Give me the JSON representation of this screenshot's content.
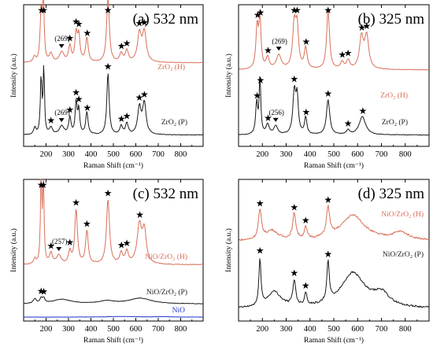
{
  "colors": {
    "red": "#d9705a",
    "black": "#1a1a1a",
    "blue": "#2233cc"
  },
  "chart_data": [
    {
      "type": "line",
      "title": "(a) 532 nm",
      "xlabel": "Raman Shift (cm⁻¹)",
      "ylabel": "Intensity (a.u.)",
      "xlim": [
        100,
        900
      ],
      "xticks": [
        "200",
        "300",
        "400",
        "500",
        "600",
        "700",
        "800"
      ],
      "series": [
        {
          "name": "ZrO₂ (H)",
          "color": "#d9705a",
          "offset": 0.55,
          "scale": 0.5,
          "baseline": 0.08,
          "peaks": [
            [
              148,
              0.08,
              6
            ],
            [
              178,
              0.72,
              5
            ],
            [
              188,
              0.9,
              4
            ],
            [
              222,
              0.12,
              8
            ],
            [
              270,
              0.14,
              12
            ],
            [
              306,
              0.22,
              7
            ],
            [
              334,
              0.4,
              6
            ],
            [
              346,
              0.36,
              6
            ],
            [
              382,
              0.34,
              7
            ],
            [
              476,
              0.92,
              7
            ],
            [
              535,
              0.12,
              8
            ],
            [
              560,
              0.16,
              8
            ],
            [
              616,
              0.4,
              10
            ],
            [
              638,
              0.42,
              10
            ]
          ],
          "stars": [
            [
              180,
              "★"
            ],
            [
              190,
              "★"
            ],
            [
              306,
              "★"
            ],
            [
              334,
              "★"
            ],
            [
              346,
              "★"
            ],
            [
              384,
              "★"
            ],
            [
              476,
              "★"
            ],
            [
              536,
              "★"
            ],
            [
              560,
              "★"
            ],
            [
              616,
              "★"
            ],
            [
              638,
              "★"
            ]
          ]
        },
        {
          "name": "ZrO₂ (P)",
          "color": "#1a1a1a",
          "offset": 0.05,
          "scale": 0.5,
          "baseline": 0.06,
          "peaks": [
            [
              150,
              0.1,
              6
            ],
            [
              178,
              0.8,
              4
            ],
            [
              190,
              0.95,
              3.5
            ],
            [
              222,
              0.1,
              8
            ],
            [
              270,
              0.12,
              12
            ],
            [
              306,
              0.24,
              6
            ],
            [
              334,
              0.45,
              5
            ],
            [
              346,
              0.34,
              5
            ],
            [
              382,
              0.32,
              6
            ],
            [
              476,
              0.88,
              6
            ],
            [
              535,
              0.12,
              7
            ],
            [
              560,
              0.16,
              7
            ],
            [
              616,
              0.38,
              9
            ],
            [
              638,
              0.44,
              9
            ]
          ],
          "stars": [
            [
              222,
              "★"
            ],
            [
              306,
              "★"
            ],
            [
              334,
              "★"
            ],
            [
              346,
              "★"
            ],
            [
              384,
              "★"
            ],
            [
              476,
              "★"
            ],
            [
              536,
              "★"
            ],
            [
              560,
              "★"
            ],
            [
              616,
              "★"
            ],
            [
              638,
              "★"
            ]
          ]
        }
      ],
      "annotations": [
        {
          "text": "(269)",
          "x": 269
        },
        {
          "text": "(269)",
          "x": 269
        }
      ]
    },
    {
      "type": "line",
      "title": "(b) 325 nm",
      "xlabel": "Raman Shift (cm⁻¹)",
      "ylabel": "Intensity (a.u.)",
      "xlim": [
        100,
        900
      ],
      "xticks": [
        "200",
        "300",
        "400",
        "500",
        "600",
        "700",
        "800"
      ],
      "series": [
        {
          "name": "ZrO₂ (H)",
          "color": "#d9705a",
          "offset": 0.5,
          "scale": 0.5,
          "baseline": 0.08,
          "peaks": [
            [
              178,
              0.6,
              6
            ],
            [
              190,
              0.72,
              5
            ],
            [
              222,
              0.16,
              8
            ],
            [
              269,
              0.2,
              12
            ],
            [
              334,
              0.62,
              8
            ],
            [
              346,
              0.55,
              7
            ],
            [
              382,
              0.3,
              7
            ],
            [
              476,
              0.85,
              7
            ],
            [
              535,
              0.1,
              8
            ],
            [
              560,
              0.12,
              8
            ],
            [
              616,
              0.44,
              10
            ],
            [
              638,
              0.46,
              10
            ]
          ],
          "stars": [
            [
              180,
              "★"
            ],
            [
              192,
              "★"
            ],
            [
              224,
              "★"
            ],
            [
              334,
              "★"
            ],
            [
              346,
              "★"
            ],
            [
              384,
              "★"
            ],
            [
              476,
              "★"
            ],
            [
              536,
              "★"
            ],
            [
              560,
              "★"
            ],
            [
              618,
              "★"
            ],
            [
              638,
              "★"
            ]
          ]
        },
        {
          "name": "ZrO₂ (P)",
          "color": "#1a1a1a",
          "offset": 0.05,
          "scale": 0.5,
          "baseline": 0.06,
          "peaks": [
            [
              176,
              0.45,
              5
            ],
            [
              190,
              0.8,
              4
            ],
            [
              222,
              0.14,
              8
            ],
            [
              256,
              0.12,
              10
            ],
            [
              334,
              0.6,
              7
            ],
            [
              346,
              0.5,
              6
            ],
            [
              382,
              0.24,
              6
            ],
            [
              476,
              0.5,
              8
            ],
            [
              560,
              0.06,
              8
            ],
            [
              620,
              0.26,
              16
            ]
          ],
          "stars": [
            [
              178,
              "★"
            ],
            [
              192,
              "★"
            ],
            [
              224,
              "★"
            ],
            [
              334,
              "★"
            ],
            [
              384,
              "★"
            ],
            [
              476,
              "★"
            ],
            [
              560,
              "★"
            ],
            [
              622,
              "★"
            ]
          ]
        }
      ],
      "annotations": [
        {
          "text": "(269)",
          "x": 269
        },
        {
          "text": "(256)",
          "x": 256
        }
      ]
    },
    {
      "type": "line",
      "title": "(c) 532 nm",
      "xlabel": "Raman Shift (cm⁻¹)",
      "ylabel": "Intensity (a.u.)",
      "xlim": [
        100,
        900
      ],
      "xticks": [
        "200",
        "300",
        "400",
        "500",
        "600",
        "700",
        "800"
      ],
      "series": [
        {
          "name": "NiO/ZrO₂ (H)",
          "color": "#d9705a",
          "offset": 0.36,
          "scale": 0.62,
          "baseline": 0.06,
          "peaks": [
            [
              150,
              0.06,
              6
            ],
            [
              178,
              0.95,
              3.5
            ],
            [
              188,
              0.95,
              3.5
            ],
            [
              222,
              0.12,
              8
            ],
            [
              257,
              0.1,
              12
            ],
            [
              306,
              0.14,
              7
            ],
            [
              334,
              0.62,
              7
            ],
            [
              382,
              0.38,
              7
            ],
            [
              476,
              0.74,
              8
            ],
            [
              535,
              0.12,
              8
            ],
            [
              560,
              0.14,
              8
            ],
            [
              616,
              0.44,
              12
            ],
            [
              638,
              0.36,
              10
            ]
          ],
          "stars": [
            [
              178,
              "★"
            ],
            [
              188,
              "★"
            ],
            [
              222,
              "★"
            ],
            [
              306,
              "★"
            ],
            [
              334,
              "★"
            ],
            [
              382,
              "★"
            ],
            [
              476,
              "★"
            ],
            [
              536,
              "★"
            ],
            [
              560,
              "★"
            ],
            [
              618,
              "★"
            ]
          ]
        },
        {
          "name": "NiO/ZrO₂ (P)",
          "color": "#1a1a1a",
          "offset": 0.1,
          "scale": 0.4,
          "baseline": 0.05,
          "peaks": [
            [
              150,
              0.08,
              8
            ],
            [
              178,
              0.09,
              6
            ],
            [
              190,
              0.08,
              6
            ],
            [
              270,
              0.08,
              50
            ],
            [
              470,
              0.05,
              40
            ],
            [
              620,
              0.1,
              60
            ]
          ],
          "stars": [
            [
              178,
              "★"
            ],
            [
              190,
              "★"
            ]
          ]
        },
        {
          "name": "NiO",
          "color": "#2233cc",
          "offset": 0.02,
          "scale": 0.15,
          "baseline": 0.05,
          "peaks": [
            [
              540,
              0.03,
              80
            ],
            [
              720,
              0.02,
              40
            ]
          ],
          "stars": []
        }
      ],
      "annotations": [
        {
          "text": "(257)",
          "x": 257
        }
      ]
    },
    {
      "type": "line",
      "title": "(d) 325 nm",
      "xlabel": "Raman Shift (cm⁻¹)",
      "ylabel": "Intensity (a.u.)",
      "xlim": [
        100,
        900
      ],
      "xticks": [
        "200",
        "300",
        "400",
        "500",
        "600",
        "700",
        "800"
      ],
      "series": [
        {
          "name": "NiO/ZrO₂ (H)",
          "color": "#d9705a",
          "offset": 0.52,
          "scale": 0.45,
          "baseline": 0.1,
          "peaks": [
            [
              190,
              0.45,
              8
            ],
            [
              240,
              0.15,
              30
            ],
            [
              334,
              0.4,
              8
            ],
            [
              382,
              0.18,
              7
            ],
            [
              476,
              0.45,
              8
            ],
            [
              580,
              0.4,
              60
            ],
            [
              780,
              0.12,
              40
            ]
          ],
          "stars": [
            [
              190,
              "★"
            ],
            [
              334,
              "★"
            ],
            [
              382,
              "★"
            ],
            [
              476,
              "★"
            ]
          ]
        },
        {
          "name": "NiO/ZrO₂ (P)",
          "color": "#1a1a1a",
          "offset": 0.05,
          "scale": 0.45,
          "baseline": 0.08,
          "peaks": [
            [
              190,
              0.75,
              5
            ],
            [
              250,
              0.25,
              35
            ],
            [
              334,
              0.4,
              7
            ],
            [
              382,
              0.2,
              6
            ],
            [
              476,
              0.62,
              6
            ],
            [
              580,
              0.55,
              60
            ],
            [
              700,
              0.2,
              40
            ]
          ],
          "stars": [
            [
              190,
              "★"
            ],
            [
              334,
              "★"
            ],
            [
              382,
              "★"
            ],
            [
              476,
              "★"
            ]
          ]
        }
      ],
      "annotations": []
    }
  ]
}
